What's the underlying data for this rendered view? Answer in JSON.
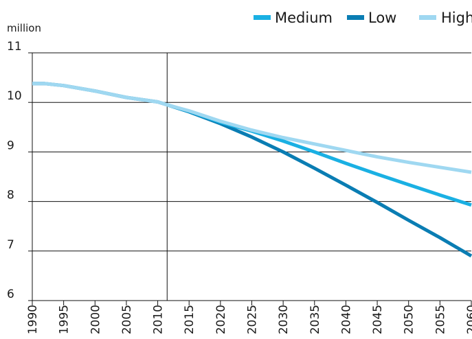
{
  "chart_data": {
    "type": "line",
    "unit_label": "million",
    "x_ticks": [
      "1990",
      "1995",
      "2000",
      "2005",
      "2010",
      "2015",
      "2020",
      "2025",
      "2030",
      "2035",
      "2040",
      "2045",
      "2050",
      "2055",
      "2060"
    ],
    "y_ticks": [
      "6",
      "7",
      "8",
      "9",
      "10",
      "11"
    ],
    "xlim": [
      1990,
      2060
    ],
    "ylim": [
      6,
      11
    ],
    "grid": true,
    "legend_position": "top-right",
    "colors": {
      "Medium": "#1ab0e3",
      "Low": "#0a7db3",
      "High": "#9fd8f1"
    },
    "series": [
      {
        "name": "Medium",
        "x": [
          2011.5,
          2015,
          2020,
          2025,
          2030,
          2035,
          2040,
          2045,
          2050,
          2055,
          2060
        ],
        "values": [
          9.95,
          9.82,
          9.6,
          9.42,
          9.22,
          9.0,
          8.77,
          8.55,
          8.34,
          8.13,
          7.93
        ]
      },
      {
        "name": "Low",
        "x": [
          1990,
          1992,
          1995,
          2000,
          2005,
          2010,
          2011.5,
          2015,
          2020,
          2025,
          2030,
          2035,
          2040,
          2045,
          2050,
          2055,
          2060
        ],
        "values": [
          10.38,
          10.38,
          10.34,
          10.23,
          10.1,
          10.01,
          9.95,
          9.81,
          9.57,
          9.3,
          9.0,
          8.67,
          8.33,
          7.98,
          7.62,
          7.27,
          6.9
        ]
      },
      {
        "name": "High",
        "x": [
          1990,
          1992,
          1995,
          2000,
          2005,
          2010,
          2011.5,
          2015,
          2020,
          2025,
          2030,
          2035,
          2040,
          2045,
          2050,
          2055,
          2060
        ],
        "values": [
          10.38,
          10.38,
          10.34,
          10.23,
          10.1,
          10.01,
          9.95,
          9.83,
          9.62,
          9.44,
          9.29,
          9.16,
          9.03,
          8.9,
          8.79,
          8.69,
          8.59
        ]
      }
    ]
  }
}
